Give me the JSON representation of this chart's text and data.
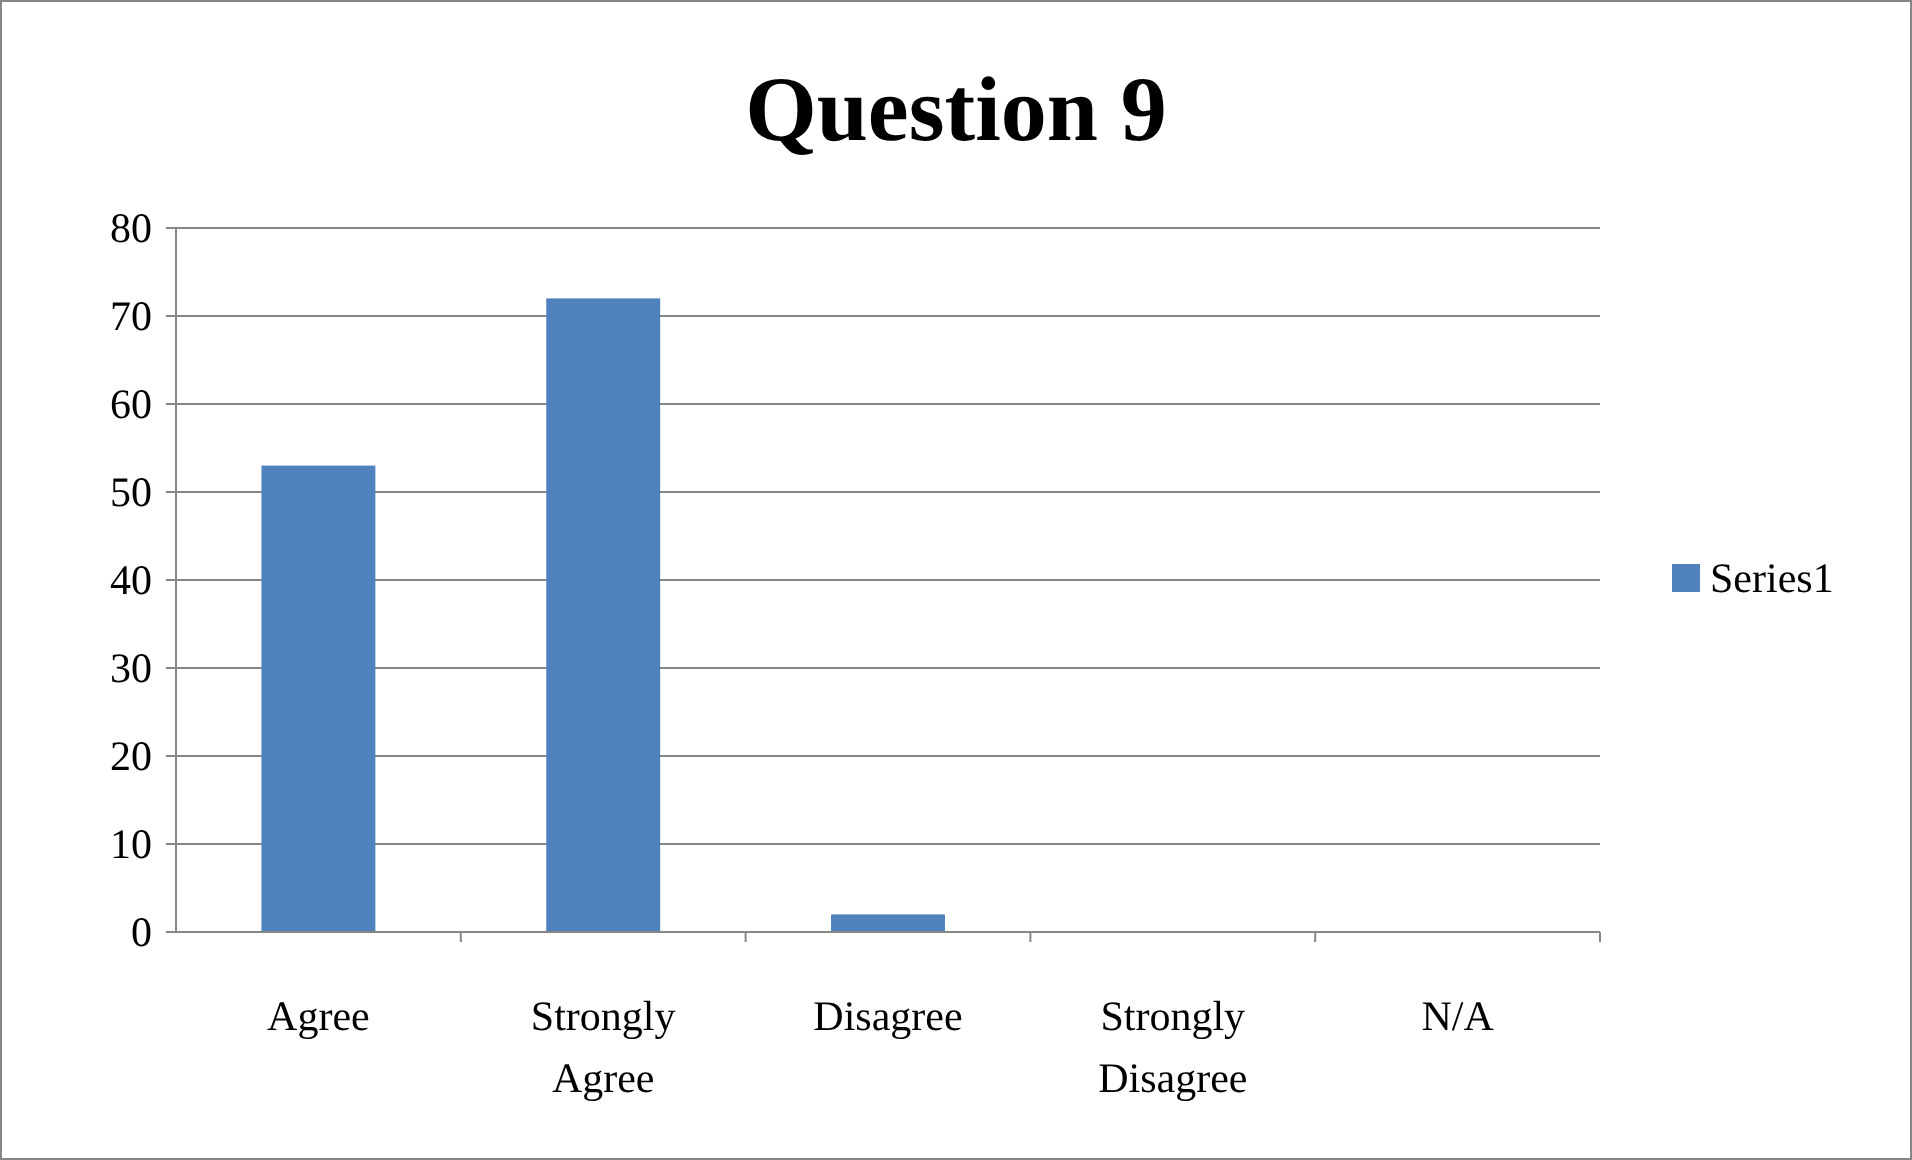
{
  "chart_data": {
    "type": "bar",
    "title": "Question 9",
    "categories": [
      "Agree",
      "Strongly Agree",
      "Disagree",
      "Strongly Disagree",
      "N/A"
    ],
    "series": [
      {
        "name": "Series1",
        "color": "#4f81bd",
        "values": [
          53,
          72,
          2,
          0,
          0
        ]
      }
    ],
    "ylim": [
      0,
      80
    ],
    "yticks": [
      0,
      10,
      20,
      30,
      40,
      50,
      60,
      70,
      80
    ],
    "grid": "y",
    "legend": "right"
  }
}
